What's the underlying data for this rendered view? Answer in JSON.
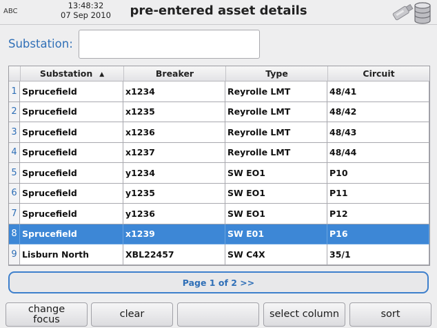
{
  "status": {
    "abc": "ABC",
    "time": "13:48:32",
    "date": "07 Sep 2010"
  },
  "title": "pre-entered asset details",
  "icons": {
    "usb": "usb-drive-icon",
    "database": "database-icon"
  },
  "search": {
    "label": "Substation:",
    "value": "",
    "placeholder": ""
  },
  "table": {
    "columns": [
      "Substation",
      "Breaker",
      "Type",
      "Circuit"
    ],
    "sort": {
      "column": "Substation",
      "direction": "ascending",
      "glyph": "▲"
    },
    "rows": [
      {
        "idx": "1",
        "substation": "Sprucefield",
        "breaker": "x1234",
        "type": "Reyrolle LMT",
        "circuit": "48/41"
      },
      {
        "idx": "2",
        "substation": "Sprucefield",
        "breaker": "x1235",
        "type": "Reyrolle LMT",
        "circuit": "48/42"
      },
      {
        "idx": "3",
        "substation": "Sprucefield",
        "breaker": "x1236",
        "type": "Reyrolle LMT",
        "circuit": "48/43"
      },
      {
        "idx": "4",
        "substation": "Sprucefield",
        "breaker": "x1237",
        "type": "Reyrolle LMT",
        "circuit": "48/44"
      },
      {
        "idx": "5",
        "substation": "Sprucefield",
        "breaker": "y1234",
        "type": "SW EO1",
        "circuit": "P10"
      },
      {
        "idx": "6",
        "substation": "Sprucefield",
        "breaker": "y1235",
        "type": "SW EO1",
        "circuit": "P11"
      },
      {
        "idx": "7",
        "substation": "Sprucefield",
        "breaker": "y1236",
        "type": "SW EO1",
        "circuit": "P12"
      },
      {
        "idx": "8",
        "substation": "Sprucefield",
        "breaker": "x1239",
        "type": "SW E01",
        "circuit": "P16"
      },
      {
        "idx": "9",
        "substation": "Lisburn North",
        "breaker": "XBL22457",
        "type": "SW C4X",
        "circuit": "35/1"
      }
    ],
    "selected_row": "8"
  },
  "pager": {
    "label": "Page 1 of 2 >>"
  },
  "buttons": {
    "change_focus_1": "change",
    "change_focus_2": "focus",
    "clear": "clear",
    "blank": "",
    "select_column": "select column",
    "sort": "sort"
  },
  "colors": {
    "accent": "#2f6fb7",
    "selection": "#3d87d6",
    "background": "#eeeeef"
  }
}
